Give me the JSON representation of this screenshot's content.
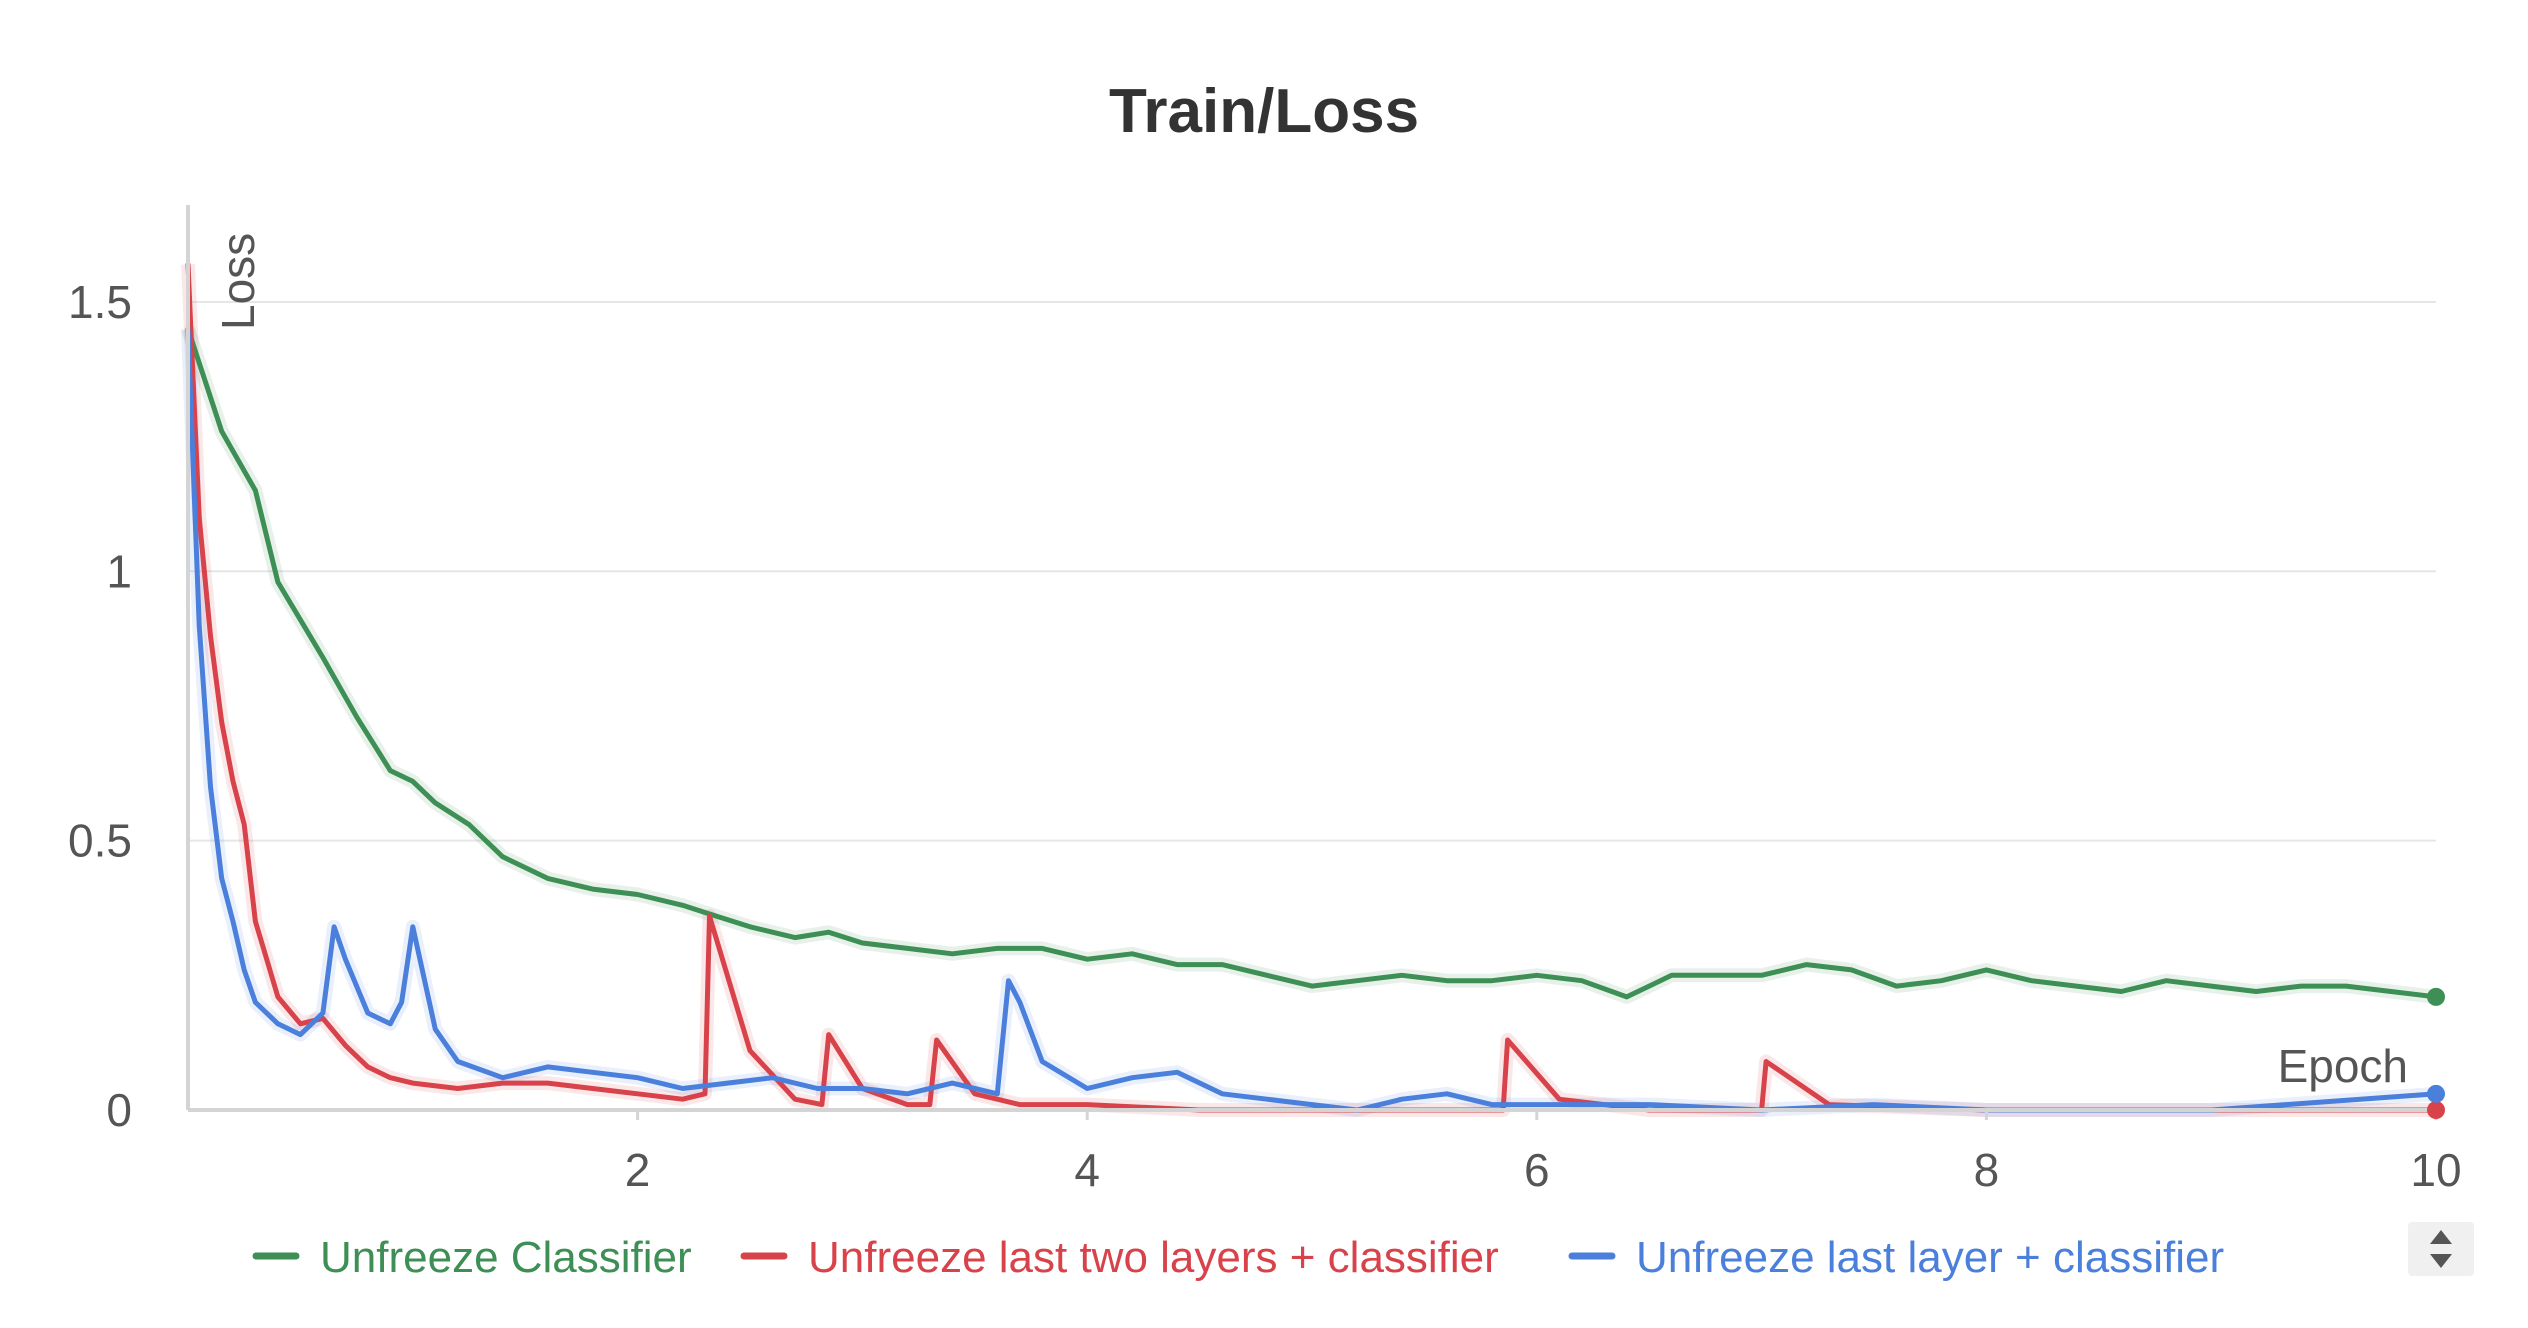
{
  "chart_data": {
    "type": "line",
    "title": "Train/Loss",
    "xlabel": "Epoch",
    "ylabel": "Loss",
    "xlim": [
      0,
      10
    ],
    "ylim": [
      0,
      1.68
    ],
    "xticks": [
      2,
      4,
      6,
      8,
      10
    ],
    "xtick_labels": [
      "2",
      "4",
      "6",
      "8",
      "10"
    ],
    "yticks": [
      0,
      0.5,
      1,
      1.5
    ],
    "ytick_labels": [
      "0",
      "0.5",
      "1",
      "1.5"
    ],
    "grid": "horizontal",
    "legend_position": "bottom",
    "smoothing": "bold line = smoothed, faint line = raw",
    "series": [
      {
        "name": "Unfreeze Classifier",
        "color": "#3d8f55",
        "x": [
          0.0,
          0.15,
          0.3,
          0.4,
          0.6,
          0.75,
          0.9,
          1.0,
          1.1,
          1.25,
          1.4,
          1.6,
          1.8,
          2.0,
          2.2,
          2.35,
          2.5,
          2.7,
          2.85,
          3.0,
          3.2,
          3.4,
          3.6,
          3.8,
          4.0,
          4.2,
          4.4,
          4.6,
          4.8,
          5.0,
          5.2,
          5.4,
          5.6,
          5.8,
          6.0,
          6.2,
          6.4,
          6.6,
          6.8,
          7.0,
          7.2,
          7.4,
          7.6,
          7.8,
          8.0,
          8.2,
          8.4,
          8.6,
          8.8,
          9.0,
          9.2,
          9.4,
          9.6,
          9.8,
          10.0
        ],
        "y": [
          1.45,
          1.26,
          1.15,
          0.98,
          0.84,
          0.73,
          0.63,
          0.61,
          0.57,
          0.53,
          0.47,
          0.43,
          0.41,
          0.4,
          0.38,
          0.36,
          0.34,
          0.32,
          0.33,
          0.31,
          0.3,
          0.29,
          0.3,
          0.3,
          0.28,
          0.29,
          0.27,
          0.27,
          0.25,
          0.23,
          0.24,
          0.25,
          0.24,
          0.24,
          0.25,
          0.24,
          0.21,
          0.25,
          0.25,
          0.25,
          0.27,
          0.26,
          0.23,
          0.24,
          0.26,
          0.24,
          0.23,
          0.22,
          0.24,
          0.23,
          0.22,
          0.23,
          0.23,
          0.22,
          0.21
        ]
      },
      {
        "name": "Unfreeze last two layers + classifier",
        "color": "#d8434b",
        "x": [
          0.0,
          0.05,
          0.1,
          0.15,
          0.2,
          0.25,
          0.3,
          0.35,
          0.4,
          0.5,
          0.6,
          0.7,
          0.8,
          0.9,
          1.0,
          1.2,
          1.4,
          1.6,
          1.8,
          2.0,
          2.2,
          2.3,
          2.32,
          2.5,
          2.7,
          2.82,
          2.85,
          3.0,
          3.2,
          3.3,
          3.33,
          3.5,
          3.7,
          4.0,
          4.5,
          5.0,
          5.5,
          5.85,
          5.87,
          6.1,
          6.5,
          7.0,
          7.02,
          7.3,
          8.0,
          9.0,
          10.0
        ],
        "y": [
          1.57,
          1.1,
          0.88,
          0.72,
          0.61,
          0.53,
          0.35,
          0.28,
          0.21,
          0.16,
          0.17,
          0.12,
          0.08,
          0.06,
          0.05,
          0.04,
          0.05,
          0.05,
          0.04,
          0.03,
          0.02,
          0.03,
          0.36,
          0.11,
          0.02,
          0.01,
          0.14,
          0.04,
          0.01,
          0.01,
          0.13,
          0.03,
          0.01,
          0.01,
          0.0,
          0.0,
          0.0,
          0.0,
          0.13,
          0.02,
          0.0,
          0.0,
          0.09,
          0.01,
          0.0,
          0.0,
          0.0
        ]
      },
      {
        "name": "Unfreeze last layer + classifier",
        "color": "#4a7fdb",
        "x": [
          0.0,
          0.05,
          0.1,
          0.15,
          0.2,
          0.25,
          0.3,
          0.4,
          0.5,
          0.6,
          0.65,
          0.7,
          0.8,
          0.9,
          0.95,
          1.0,
          1.1,
          1.2,
          1.4,
          1.6,
          1.8,
          2.0,
          2.2,
          2.4,
          2.6,
          2.8,
          3.0,
          3.2,
          3.4,
          3.6,
          3.65,
          3.7,
          3.8,
          4.0,
          4.2,
          4.4,
          4.6,
          4.8,
          5.0,
          5.2,
          5.4,
          5.6,
          5.8,
          6.0,
          6.5,
          7.0,
          7.5,
          8.0,
          9.0,
          10.0
        ],
        "y": [
          1.45,
          0.9,
          0.6,
          0.43,
          0.35,
          0.26,
          0.2,
          0.16,
          0.14,
          0.18,
          0.34,
          0.28,
          0.18,
          0.16,
          0.2,
          0.34,
          0.15,
          0.09,
          0.06,
          0.08,
          0.07,
          0.06,
          0.04,
          0.05,
          0.06,
          0.04,
          0.04,
          0.03,
          0.05,
          0.03,
          0.24,
          0.2,
          0.09,
          0.04,
          0.06,
          0.07,
          0.03,
          0.02,
          0.01,
          0.0,
          0.02,
          0.03,
          0.01,
          0.01,
          0.01,
          0.0,
          0.01,
          0.0,
          0.0,
          0.03
        ]
      }
    ]
  }
}
